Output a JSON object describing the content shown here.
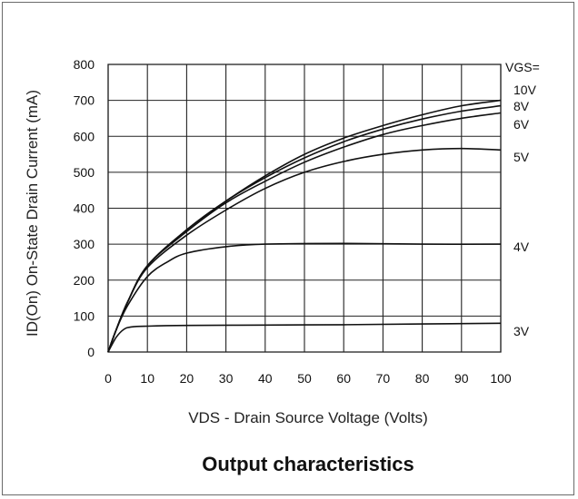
{
  "chart_data": {
    "type": "line",
    "title": "Output characteristics",
    "xlabel": "VDS - Drain Source Voltage (Volts)",
    "ylabel": "ID(On) On-State Drain Current (mA)",
    "xlim": [
      0,
      100
    ],
    "ylim": [
      0,
      800
    ],
    "x_ticks": [
      "0",
      "10",
      "20",
      "30",
      "40",
      "50",
      "60",
      "70",
      "80",
      "90",
      "100"
    ],
    "y_ticks": [
      "0",
      "100",
      "200",
      "300",
      "400",
      "500",
      "600",
      "700",
      "800"
    ],
    "grid": true,
    "legend_header": "VGS=",
    "series": [
      {
        "name": "10V",
        "x": [
          0,
          2,
          5,
          10,
          20,
          30,
          40,
          50,
          60,
          70,
          80,
          90,
          100
        ],
        "y": [
          0,
          60,
          140,
          240,
          340,
          420,
          490,
          550,
          595,
          630,
          660,
          685,
          700
        ]
      },
      {
        "name": "8V",
        "x": [
          0,
          2,
          5,
          10,
          20,
          30,
          40,
          50,
          60,
          70,
          80,
          90,
          100
        ],
        "y": [
          0,
          60,
          140,
          240,
          340,
          420,
          485,
          540,
          585,
          620,
          648,
          670,
          685
        ]
      },
      {
        "name": "6V",
        "x": [
          0,
          2,
          5,
          10,
          20,
          30,
          40,
          50,
          60,
          70,
          80,
          90,
          100
        ],
        "y": [
          0,
          60,
          140,
          240,
          335,
          415,
          475,
          528,
          570,
          605,
          630,
          650,
          665
        ]
      },
      {
        "name": "5V",
        "x": [
          0,
          2,
          5,
          10,
          20,
          30,
          40,
          50,
          60,
          70,
          80,
          90,
          100
        ],
        "y": [
          0,
          60,
          140,
          235,
          325,
          395,
          455,
          500,
          530,
          550,
          562,
          566,
          562
        ]
      },
      {
        "name": "4V",
        "x": [
          0,
          2,
          5,
          10,
          15,
          20,
          30,
          40,
          60,
          80,
          100
        ],
        "y": [
          0,
          60,
          130,
          210,
          250,
          275,
          293,
          300,
          302,
          300,
          300
        ]
      },
      {
        "name": "3V",
        "x": [
          0,
          2,
          4,
          6,
          10,
          20,
          40,
          60,
          80,
          100
        ],
        "y": [
          0,
          40,
          63,
          70,
          72,
          74,
          75,
          76,
          78,
          80
        ]
      }
    ]
  }
}
